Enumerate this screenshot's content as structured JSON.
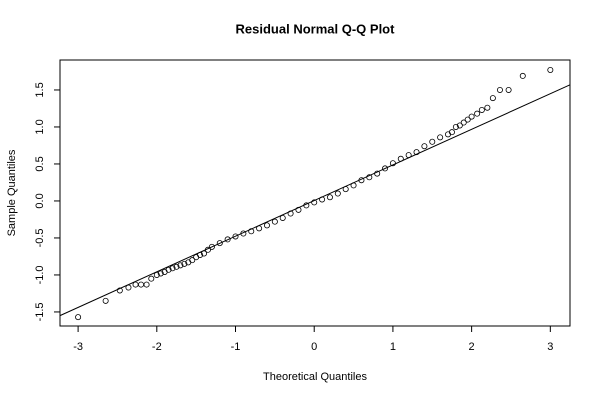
{
  "chart_data": {
    "type": "scatter",
    "title": "Residual Normal Q-Q Plot",
    "x_label": "Theoretical Quantiles",
    "y_label": "Sample Quantiles",
    "x": [
      -3.0,
      -2.65,
      -2.47,
      -2.36,
      -2.27,
      -2.2,
      -2.13,
      -2.07,
      -2.0,
      -1.95,
      -1.9,
      -1.85,
      -1.8,
      -1.75,
      -1.7,
      -1.65,
      -1.6,
      -1.55,
      -1.5,
      -1.45,
      -1.4,
      -1.35,
      -1.3,
      -1.2,
      -1.1,
      -1.0,
      -0.9,
      -0.8,
      -0.7,
      -0.6,
      -0.5,
      -0.4,
      -0.3,
      -0.2,
      -0.1,
      0,
      0.1,
      0.2,
      0.3,
      0.4,
      0.5,
      0.6,
      0.7,
      0.8,
      0.9,
      1.0,
      1.1,
      1.2,
      1.3,
      1.4,
      1.5,
      1.6,
      1.7,
      1.75,
      1.8,
      1.85,
      1.9,
      1.95,
      2.0,
      2.07,
      2.13,
      2.2,
      2.27,
      2.36,
      2.47,
      2.65,
      3.0
    ],
    "values": [
      -1.57,
      -1.35,
      -1.21,
      -1.17,
      -1.13,
      -1.13,
      -1.13,
      -1.05,
      -1.0,
      -0.98,
      -0.96,
      -0.93,
      -0.91,
      -0.89,
      -0.87,
      -0.85,
      -0.83,
      -0.8,
      -0.76,
      -0.73,
      -0.71,
      -0.66,
      -0.62,
      -0.57,
      -0.52,
      -0.48,
      -0.44,
      -0.41,
      -0.37,
      -0.33,
      -0.28,
      -0.23,
      -0.17,
      -0.12,
      -0.06,
      -0.02,
      0.02,
      0.05,
      0.1,
      0.16,
      0.21,
      0.28,
      0.32,
      0.37,
      0.44,
      0.51,
      0.57,
      0.62,
      0.66,
      0.74,
      0.8,
      0.86,
      0.9,
      0.93,
      1.0,
      1.02,
      1.06,
      1.1,
      1.14,
      1.18,
      1.23,
      1.26,
      1.39,
      1.5,
      1.5,
      1.69,
      1.77
    ],
    "color": "#000000",
    "reference_line": {
      "x": [
        -3.23,
        3.25
      ],
      "y": [
        -1.55,
        1.57
      ]
    },
    "xlim": [
      -3.23,
      3.25
    ],
    "ylim": [
      -1.69,
      1.905
    ],
    "xticks": [
      -3,
      -2,
      -1,
      0,
      1,
      2,
      3
    ],
    "yticks": [
      -1.5,
      {
        "value": -1,
        "label": "-1.0"
      },
      -0.5,
      {
        "value": 0,
        "label": "0.0"
      },
      0.5,
      {
        "value": 1,
        "label": "1.0"
      },
      1.5
    ]
  }
}
